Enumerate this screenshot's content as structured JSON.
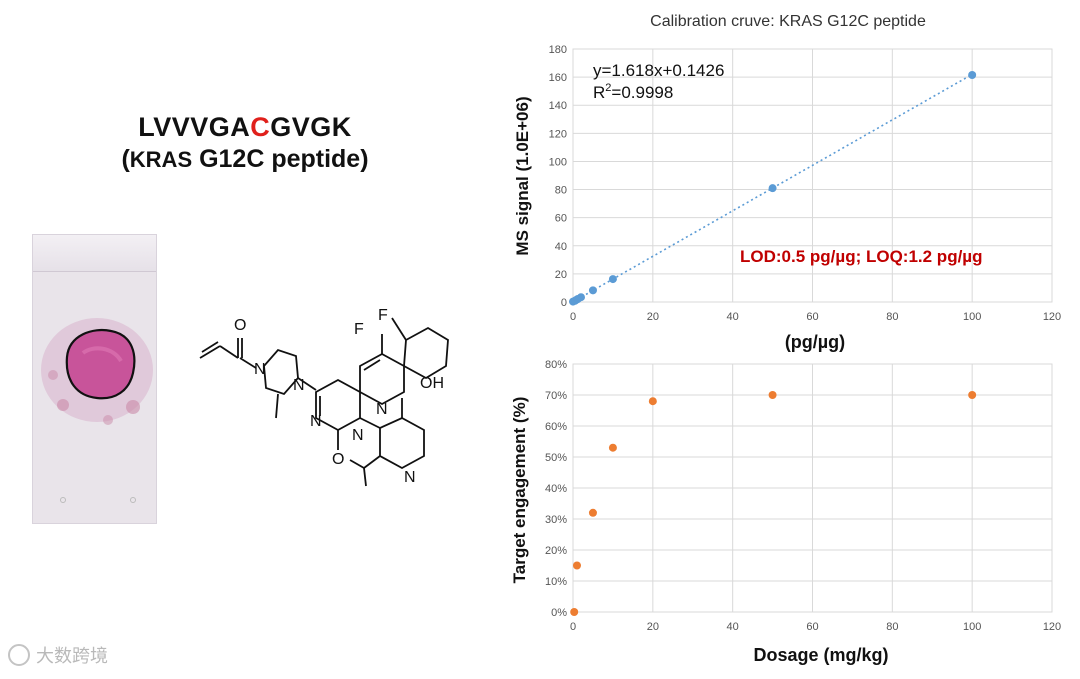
{
  "peptide": {
    "seq_pre": "LVVVGA",
    "seq_mut": "C",
    "seq_post": "GVGK",
    "name_open": "(",
    "name_kras": "KRAS",
    "name_rest": " G12C peptide)"
  },
  "molecule_labels": {
    "o1": "O",
    "n1": "N",
    "n2": "N",
    "f1": "F",
    "f2": "F",
    "n3": "N",
    "oh": "OH",
    "n4": "N",
    "n5": "N",
    "o2": "O",
    "n6": "N"
  },
  "watermark": {
    "text": "大数跨境"
  },
  "colors": {
    "calibration_points": "#5b9bd5",
    "engagement_points": "#ed7d31",
    "lod_text": "#c00000",
    "mutation_highlight": "#e0201b"
  },
  "chart_data": [
    {
      "type": "scatter",
      "title": "Calibration cruve: KRAS G12C peptide",
      "xlabel": "(pg/µg)",
      "ylabel": "MS signal  (1.0E+06)",
      "xlim": [
        0,
        120
      ],
      "ylim": [
        0,
        180
      ],
      "x_ticks": [
        0,
        20,
        40,
        60,
        80,
        100,
        120
      ],
      "y_ticks": [
        0,
        20,
        40,
        60,
        80,
        100,
        120,
        140,
        160,
        180
      ],
      "grid": true,
      "series": [
        {
          "x": [
            0,
            0.5,
            1,
            1.2,
            2,
            5,
            10,
            50,
            100
          ],
          "y": [
            0.3,
            0.9,
            1.8,
            2.1,
            3.4,
            8.3,
            16.3,
            81,
            161.5
          ]
        }
      ],
      "trendline": {
        "type": "linear",
        "slope": 1.618,
        "intercept": 0.1426,
        "x_range": [
          0,
          100
        ]
      },
      "annotations": {
        "equation": "y=1.618x+0.1426",
        "r2_prefix": "R",
        "r2_sup": "2",
        "r2_value": "=0.9998",
        "lod_loq": "LOD:0.5 pg/µg; LOQ:1.2 pg/µg"
      }
    },
    {
      "type": "scatter",
      "title": "",
      "xlabel": "Dosage (mg/kg)",
      "ylabel": "Target engagement (%)",
      "xlim": [
        0,
        120
      ],
      "ylim": [
        0,
        80
      ],
      "x_ticks": [
        0,
        20,
        40,
        60,
        80,
        100,
        120
      ],
      "y_ticks": [
        0,
        10,
        20,
        30,
        40,
        50,
        60,
        70,
        80
      ],
      "y_tick_suffix": "%",
      "grid": true,
      "series": [
        {
          "x": [
            0.3,
            1,
            5,
            10,
            20,
            50,
            100
          ],
          "y": [
            0,
            15,
            32,
            53,
            68,
            70,
            70
          ]
        }
      ]
    }
  ]
}
